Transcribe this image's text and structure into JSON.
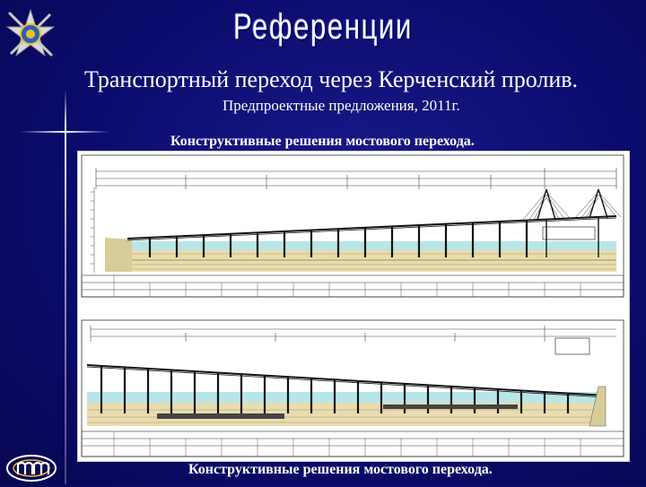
{
  "slide": {
    "title": "Референции",
    "subtitle": "Транспортный переход через Керченский пролив.",
    "subsubtitle": "Предпроектные предложения, 2011г.",
    "panel_caption": "Конструктивные решения мостового перехода.",
    "footer_caption": "Конструктивные решения мостового перехода."
  },
  "colors": {
    "background": "#0b0b6e",
    "text": "#ffffff",
    "drawing_water": "#b8e6e8",
    "drawing_soil": "#e8dcb0",
    "drawing_line": "#1a1a1a"
  },
  "icons": {
    "top_logo": "emblem-star-icon",
    "bottom_logo": "mm-logo-icon"
  }
}
